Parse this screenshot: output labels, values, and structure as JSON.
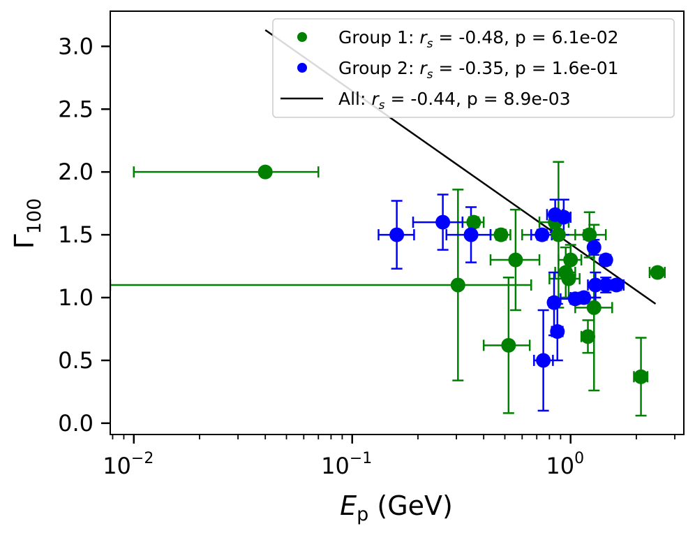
{
  "chart_data": {
    "type": "scatter",
    "xscale": "log",
    "xlim": [
      0.0078,
      3.3
    ],
    "ylim": [
      -0.09,
      3.28
    ],
    "xlabel": {
      "main": "E",
      "sub": "p",
      "unit": " (GeV)"
    },
    "ylabel": {
      "main": "Γ",
      "sub": "100"
    },
    "x_ticks": [
      {
        "base": "10",
        "exp": "−2",
        "value": 0.01
      },
      {
        "base": "10",
        "exp": "−1",
        "value": 0.1
      },
      {
        "base": "10",
        "exp": "0",
        "value": 1
      }
    ],
    "y_ticks": [
      {
        "label": "0.0",
        "value": 0.0
      },
      {
        "label": "0.5",
        "value": 0.5
      },
      {
        "label": "1.0",
        "value": 1.0
      },
      {
        "label": "1.5",
        "value": 1.5
      },
      {
        "label": "2.0",
        "value": 2.0
      },
      {
        "label": "2.5",
        "value": 2.5
      },
      {
        "label": "3.0",
        "value": 3.0
      }
    ],
    "legend": {
      "placement": "upper-right",
      "entries": [
        {
          "label_prefix": "Group 1: ",
          "label_sym": "r",
          "label_sub": "s",
          "label_rest": " = -0.48, p = 6.1e-02",
          "color": "#008000",
          "kind": "marker"
        },
        {
          "label_prefix": "Group 2: ",
          "label_sym": "r",
          "label_sub": "s",
          "label_rest": " = -0.35, p = 1.6e-01",
          "color": "#0000ff",
          "kind": "marker"
        },
        {
          "label_prefix": "All: ",
          "label_sym": "r",
          "label_sub": "s",
          "label_rest": " = -0.44, p = 8.9e-03",
          "color": "#000000",
          "kind": "line"
        }
      ]
    },
    "fit_line": {
      "name": "All",
      "color": "#000000",
      "points": [
        [
          0.04,
          3.13
        ],
        [
          2.45,
          0.95
        ]
      ]
    },
    "series": [
      {
        "name": "Group 1",
        "color": "#008000",
        "points": [
          {
            "x": 0.04,
            "y": 2.0,
            "xlo": 0.01,
            "xhi": 0.07,
            "ylo": 1.98,
            "yhi": 2.02
          },
          {
            "x": 0.305,
            "y": 1.1,
            "xlo": 0.0078,
            "xhi": 0.66,
            "ylo": 0.34,
            "yhi": 1.86
          },
          {
            "x": 0.36,
            "y": 1.6,
            "xlo": 0.32,
            "xhi": 0.4,
            "ylo": 1.56,
            "yhi": 1.64
          },
          {
            "x": 0.48,
            "y": 1.5,
            "xlo": 0.43,
            "xhi": 0.53,
            "ylo": 1.46,
            "yhi": 1.54
          },
          {
            "x": 0.52,
            "y": 0.62,
            "xlo": 0.4,
            "xhi": 0.65,
            "ylo": 0.08,
            "yhi": 1.16
          },
          {
            "x": 0.56,
            "y": 1.3,
            "xlo": 0.43,
            "xhi": 0.72,
            "ylo": 0.9,
            "yhi": 1.7
          },
          {
            "x": 0.85,
            "y": 1.6,
            "xlo": 0.72,
            "xhi": 0.98,
            "ylo": 1.55,
            "yhi": 1.65
          },
          {
            "x": 0.88,
            "y": 1.5,
            "xlo": 0.6,
            "xhi": 1.15,
            "ylo": 0.92,
            "yhi": 2.08
          },
          {
            "x": 0.95,
            "y": 1.2,
            "xlo": 0.85,
            "xhi": 1.05,
            "ylo": 1.0,
            "yhi": 1.4
          },
          {
            "x": 0.98,
            "y": 1.15,
            "xlo": 0.8,
            "xhi": 1.1,
            "ylo": 1.0,
            "yhi": 1.3
          },
          {
            "x": 1.0,
            "y": 1.3,
            "xlo": 0.88,
            "xhi": 1.12,
            "ylo": 1.18,
            "yhi": 1.42
          },
          {
            "x": 1.22,
            "y": 1.5,
            "xlo": 1.05,
            "xhi": 1.45,
            "ylo": 1.32,
            "yhi": 1.68
          },
          {
            "x": 1.2,
            "y": 0.69,
            "xlo": 1.12,
            "xhi": 1.28,
            "ylo": 0.56,
            "yhi": 0.82
          },
          {
            "x": 1.28,
            "y": 0.92,
            "xlo": 1.05,
            "xhi": 1.55,
            "ylo": 0.26,
            "yhi": 1.58
          },
          {
            "x": 2.1,
            "y": 0.37,
            "xlo": 1.95,
            "xhi": 2.25,
            "ylo": 0.06,
            "yhi": 0.68
          },
          {
            "x": 2.5,
            "y": 1.2,
            "xlo": 2.3,
            "xhi": 2.7,
            "ylo": 1.17,
            "yhi": 1.23
          }
        ]
      },
      {
        "name": "Group 2",
        "color": "#0000ff",
        "points": [
          {
            "x": 0.16,
            "y": 1.5,
            "xlo": 0.132,
            "xhi": 0.192,
            "ylo": 1.23,
            "yhi": 1.77
          },
          {
            "x": 0.26,
            "y": 1.6,
            "xlo": 0.19,
            "xhi": 0.32,
            "ylo": 1.38,
            "yhi": 1.82
          },
          {
            "x": 0.35,
            "y": 1.5,
            "xlo": 0.27,
            "xhi": 0.43,
            "ylo": 1.28,
            "yhi": 1.72
          },
          {
            "x": 0.75,
            "y": 0.5,
            "xlo": 0.68,
            "xhi": 0.83,
            "ylo": 0.1,
            "yhi": 0.9
          },
          {
            "x": 0.74,
            "y": 1.5,
            "xlo": 0.66,
            "xhi": 0.82,
            "ylo": 1.46,
            "yhi": 1.54
          },
          {
            "x": 0.84,
            "y": 0.96,
            "xlo": 0.8,
            "xhi": 0.88,
            "ylo": 0.7,
            "yhi": 1.2
          },
          {
            "x": 0.85,
            "y": 1.66,
            "xlo": 0.78,
            "xhi": 0.92,
            "ylo": 1.52,
            "yhi": 1.78
          },
          {
            "x": 0.87,
            "y": 0.73,
            "xlo": 0.82,
            "xhi": 0.92,
            "ylo": 0.5,
            "yhi": 0.95
          },
          {
            "x": 0.93,
            "y": 1.64,
            "xlo": 0.86,
            "xhi": 1.0,
            "ylo": 1.5,
            "yhi": 1.78
          },
          {
            "x": 1.05,
            "y": 0.99,
            "xlo": 0.9,
            "xhi": 1.2,
            "ylo": 0.95,
            "yhi": 1.03
          },
          {
            "x": 1.15,
            "y": 1.0,
            "xlo": 1.0,
            "xhi": 1.3,
            "ylo": 0.96,
            "yhi": 1.04
          },
          {
            "x": 1.28,
            "y": 1.4,
            "xlo": 1.22,
            "xhi": 1.34,
            "ylo": 1.34,
            "yhi": 1.46
          },
          {
            "x": 1.3,
            "y": 1.1,
            "xlo": 1.2,
            "xhi": 1.4,
            "ylo": 1.0,
            "yhi": 1.2
          },
          {
            "x": 1.45,
            "y": 1.1,
            "xlo": 1.35,
            "xhi": 1.55,
            "ylo": 1.04,
            "yhi": 1.16
          },
          {
            "x": 1.45,
            "y": 1.3,
            "xlo": 1.38,
            "xhi": 1.52,
            "ylo": 1.26,
            "yhi": 1.34
          },
          {
            "x": 1.62,
            "y": 1.1,
            "xlo": 1.5,
            "xhi": 1.75,
            "ylo": 1.06,
            "yhi": 1.14
          }
        ]
      }
    ]
  }
}
